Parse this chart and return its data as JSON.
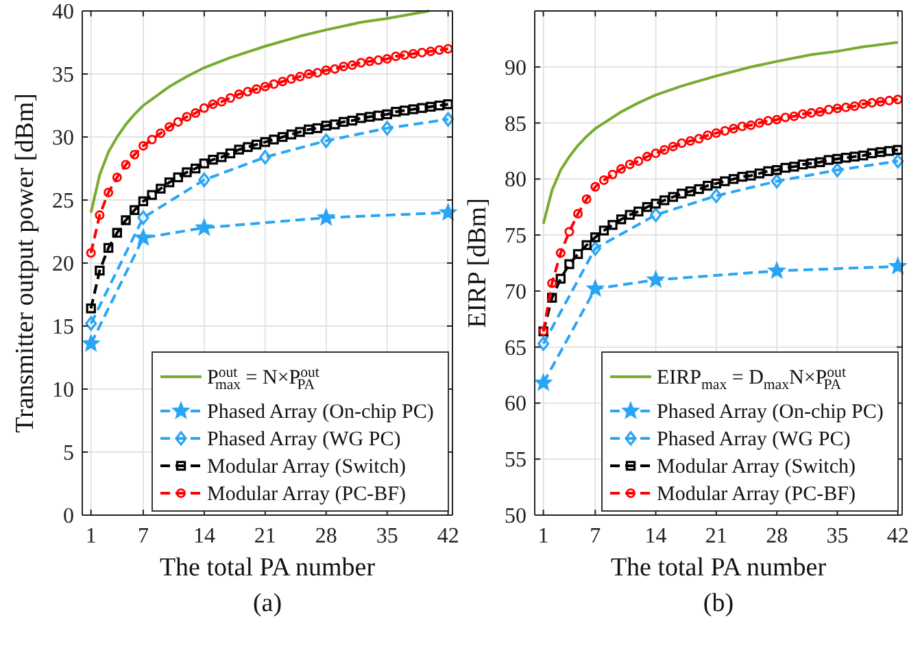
{
  "chart_data": [
    {
      "type": "line",
      "xlabel": "The total PA number",
      "ylabel": "Transmitter output power [dBm]",
      "xlim": [
        0,
        42.5
      ],
      "xticks": [
        1,
        7,
        14,
        21,
        28,
        35,
        42
      ],
      "ylim": [
        0,
        40
      ],
      "yticks": [
        0,
        5,
        10,
        15,
        20,
        25,
        30,
        35,
        40
      ],
      "grid": true,
      "legend": "bottom right",
      "line_style": "dashed",
      "annotations": [
        "(a)"
      ],
      "series": [
        {
          "name": "P$^{out}$$_{max}$ = N×P$^{out}$$_{PA}$",
          "color": "#77ac30",
          "marker": "none",
          "line_style": "solid",
          "x": [
            1,
            2,
            3,
            4,
            5,
            6,
            7,
            8,
            10,
            12,
            14,
            17,
            21,
            25,
            28,
            32,
            35,
            39.8
          ],
          "values": [
            24,
            27.0,
            28.8,
            30.0,
            31.0,
            31.8,
            32.5,
            33.0,
            34.0,
            34.8,
            35.5,
            36.3,
            37.2,
            38.0,
            38.5,
            39.1,
            39.4,
            40.0
          ]
        },
        {
          "name": "Phased Array (On-chip PC)",
          "color": "#2aa5f5",
          "marker": "star",
          "x": [
            1,
            7,
            14,
            28,
            42
          ],
          "values": [
            13.6,
            22.0,
            22.8,
            23.6,
            24.0
          ]
        },
        {
          "name": "Phased Array (WG PC)",
          "color": "#2aa5f5",
          "marker": "diamond",
          "x": [
            1,
            7,
            14,
            21,
            28,
            35,
            42
          ],
          "values": [
            15.2,
            23.6,
            26.6,
            28.4,
            29.7,
            30.7,
            31.4
          ]
        },
        {
          "name": "Modular Array (Switch)",
          "color": "#000000",
          "marker": "square",
          "x": [
            1,
            2,
            3,
            4,
            5,
            6,
            7,
            8,
            9,
            10,
            11,
            12,
            13,
            14,
            15,
            16,
            17,
            18,
            19,
            20,
            21,
            22,
            23,
            24,
            25,
            26,
            27,
            28,
            29,
            30,
            31,
            32,
            33,
            34,
            35,
            36,
            37,
            38,
            39,
            40,
            41,
            42
          ],
          "values": [
            16.4,
            19.4,
            21.2,
            22.4,
            23.4,
            24.2,
            24.9,
            25.4,
            25.9,
            26.4,
            26.8,
            27.2,
            27.5,
            27.9,
            28.2,
            28.4,
            28.7,
            29.0,
            29.2,
            29.4,
            29.6,
            29.8,
            30.0,
            30.2,
            30.4,
            30.6,
            30.7,
            30.9,
            31.0,
            31.2,
            31.3,
            31.5,
            31.6,
            31.7,
            31.8,
            32.0,
            32.1,
            32.2,
            32.3,
            32.4,
            32.5,
            32.6
          ]
        },
        {
          "name": "Modular Array (PC-BF)",
          "color": "#ff0000",
          "marker": "circle",
          "x": [
            1,
            2,
            3,
            4,
            5,
            6,
            7,
            8,
            9,
            10,
            11,
            12,
            13,
            14,
            15,
            16,
            17,
            18,
            19,
            20,
            21,
            22,
            23,
            24,
            25,
            26,
            27,
            28,
            29,
            30,
            31,
            32,
            33,
            34,
            35,
            36,
            37,
            38,
            39,
            40,
            41,
            42
          ],
          "values": [
            20.8,
            23.8,
            25.6,
            26.8,
            27.8,
            28.6,
            29.3,
            29.8,
            30.3,
            30.8,
            31.2,
            31.6,
            31.9,
            32.3,
            32.6,
            32.8,
            33.1,
            33.4,
            33.6,
            33.8,
            34.0,
            34.2,
            34.4,
            34.6,
            34.8,
            35.0,
            35.1,
            35.3,
            35.4,
            35.6,
            35.7,
            35.9,
            36.0,
            36.1,
            36.2,
            36.4,
            36.5,
            36.6,
            36.7,
            36.8,
            36.9,
            37.0
          ]
        }
      ]
    },
    {
      "type": "line",
      "xlabel": "The total PA number",
      "ylabel": "EIRP [dBm]",
      "xlim": [
        0,
        42.5
      ],
      "xticks": [
        1,
        7,
        14,
        21,
        28,
        35,
        42
      ],
      "ylim": [
        50,
        95
      ],
      "yticks": [
        50,
        55,
        60,
        65,
        70,
        75,
        80,
        85,
        90
      ],
      "grid": true,
      "legend": "bottom right",
      "line_style": "dashed",
      "annotations": [
        "(b)"
      ],
      "series": [
        {
          "name": "EIRP$_{max}$ = D$_{max}$N×P$^{out}$$_{PA}$",
          "color": "#77ac30",
          "marker": "none",
          "line_style": "solid",
          "x": [
            1,
            2,
            3,
            4,
            5,
            6,
            7,
            8,
            10,
            12,
            14,
            17,
            21,
            25,
            28,
            32,
            35,
            38,
            42
          ],
          "values": [
            76,
            79.0,
            80.8,
            82.0,
            83.0,
            83.8,
            84.5,
            85.0,
            86.0,
            86.8,
            87.5,
            88.3,
            89.2,
            90.0,
            90.5,
            91.1,
            91.4,
            91.8,
            92.2
          ]
        },
        {
          "name": "Phased Array (On-chip PC)",
          "color": "#2aa5f5",
          "marker": "star",
          "x": [
            1,
            7,
            14,
            28,
            42
          ],
          "values": [
            61.8,
            70.2,
            71.0,
            71.8,
            72.2
          ]
        },
        {
          "name": "Phased Array (WG PC)",
          "color": "#2aa5f5",
          "marker": "diamond",
          "x": [
            1,
            7,
            14,
            21,
            28,
            35,
            42
          ],
          "values": [
            65.3,
            73.8,
            76.8,
            78.5,
            79.8,
            80.8,
            81.6
          ]
        },
        {
          "name": "Modular Array (Switch)",
          "color": "#000000",
          "marker": "square",
          "x": [
            1,
            2,
            3,
            4,
            5,
            6,
            7,
            8,
            9,
            10,
            11,
            12,
            13,
            14,
            15,
            16,
            17,
            18,
            19,
            20,
            21,
            22,
            23,
            24,
            25,
            26,
            27,
            28,
            29,
            30,
            31,
            32,
            33,
            34,
            35,
            36,
            37,
            38,
            39,
            40,
            41,
            42
          ],
          "values": [
            66.4,
            69.4,
            71.1,
            72.4,
            73.3,
            74.1,
            74.8,
            75.4,
            75.9,
            76.4,
            76.8,
            77.1,
            77.5,
            77.8,
            78.1,
            78.4,
            78.7,
            78.9,
            79.1,
            79.4,
            79.6,
            79.8,
            80.0,
            80.2,
            80.3,
            80.5,
            80.7,
            80.8,
            81.0,
            81.1,
            81.3,
            81.4,
            81.5,
            81.7,
            81.8,
            81.9,
            82.0,
            82.1,
            82.3,
            82.4,
            82.5,
            82.6
          ]
        },
        {
          "name": "Modular Array (PC-BF)",
          "color": "#ff0000",
          "marker": "circle",
          "x": [
            1,
            2,
            3,
            4,
            5,
            6,
            7,
            8,
            9,
            10,
            11,
            12,
            13,
            14,
            15,
            16,
            17,
            18,
            19,
            20,
            21,
            22,
            23,
            24,
            25,
            26,
            27,
            28,
            29,
            30,
            31,
            32,
            33,
            34,
            35,
            36,
            37,
            38,
            39,
            40,
            41,
            42
          ],
          "values": [
            66.4,
            70.7,
            73.4,
            75.3,
            76.9,
            78.2,
            79.3,
            79.9,
            80.4,
            80.9,
            81.3,
            81.6,
            82.0,
            82.3,
            82.6,
            82.9,
            83.2,
            83.4,
            83.6,
            83.9,
            84.1,
            84.3,
            84.5,
            84.7,
            84.8,
            85.0,
            85.2,
            85.3,
            85.5,
            85.6,
            85.8,
            85.9,
            86.0,
            86.2,
            86.3,
            86.4,
            86.5,
            86.7,
            86.8,
            86.9,
            87.0,
            87.1
          ]
        }
      ]
    }
  ]
}
